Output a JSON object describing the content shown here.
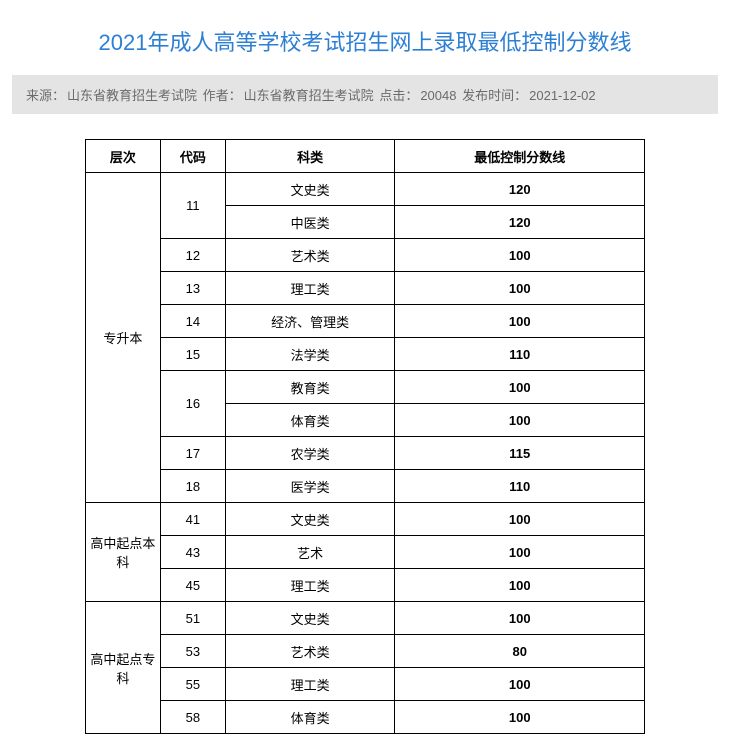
{
  "title": "2021年成人高等学校考试招生网上录取最低控制分数线",
  "meta": {
    "source_label": "来源：",
    "source_value": "山东省教育招生考试院",
    "author_label": "作者：",
    "author_value": "山东省教育招生考试院",
    "hits_label": "点击：",
    "hits_value": "20048",
    "pub_label": "发布时间：",
    "pub_value": "2021-12-02"
  },
  "table": {
    "headers": {
      "level": "层次",
      "code": "代码",
      "category": "科类",
      "min_score": "最低控制分数线"
    },
    "levels": {
      "zsb": "专升本",
      "gqb": "高中起点本科",
      "gqz": "高中起点专科"
    },
    "rows": {
      "zsb_11_a_cat": "文史类",
      "zsb_11_a_score": "120",
      "zsb_11_b_cat": "中医类",
      "zsb_11_b_score": "120",
      "zsb_12_cat": "艺术类",
      "zsb_12_score": "100",
      "zsb_13_cat": "理工类",
      "zsb_13_score": "100",
      "zsb_14_cat": "经济、管理类",
      "zsb_14_score": "100",
      "zsb_15_cat": "法学类",
      "zsb_15_score": "110",
      "zsb_16_a_cat": "教育类",
      "zsb_16_a_score": "100",
      "zsb_16_b_cat": "体育类",
      "zsb_16_b_score": "100",
      "zsb_17_cat": "农学类",
      "zsb_17_score": "115",
      "zsb_18_cat": "医学类",
      "zsb_18_score": "110",
      "gqb_41_cat": "文史类",
      "gqb_41_score": "100",
      "gqb_43_cat": "艺术",
      "gqb_43_score": "100",
      "gqb_45_cat": "理工类",
      "gqb_45_score": "100",
      "gqz_51_cat": "文史类",
      "gqz_51_score": "100",
      "gqz_53_cat": "艺术类",
      "gqz_53_score": "80",
      "gqz_55_cat": "理工类",
      "gqz_55_score": "100",
      "gqz_58_cat": "体育类",
      "gqz_58_score": "100"
    },
    "codes": {
      "c11": "11",
      "c12": "12",
      "c13": "13",
      "c14": "14",
      "c15": "15",
      "c16": "16",
      "c17": "17",
      "c18": "18",
      "c41": "41",
      "c43": "43",
      "c45": "45",
      "c51": "51",
      "c53": "53",
      "c55": "55",
      "c58": "58"
    }
  },
  "colors": {
    "title": "#2d7fd4",
    "meta_bg": "#e4e4e4",
    "meta_text": "#6b6b6b",
    "border": "#000000",
    "page_bg": "#ffffff"
  }
}
